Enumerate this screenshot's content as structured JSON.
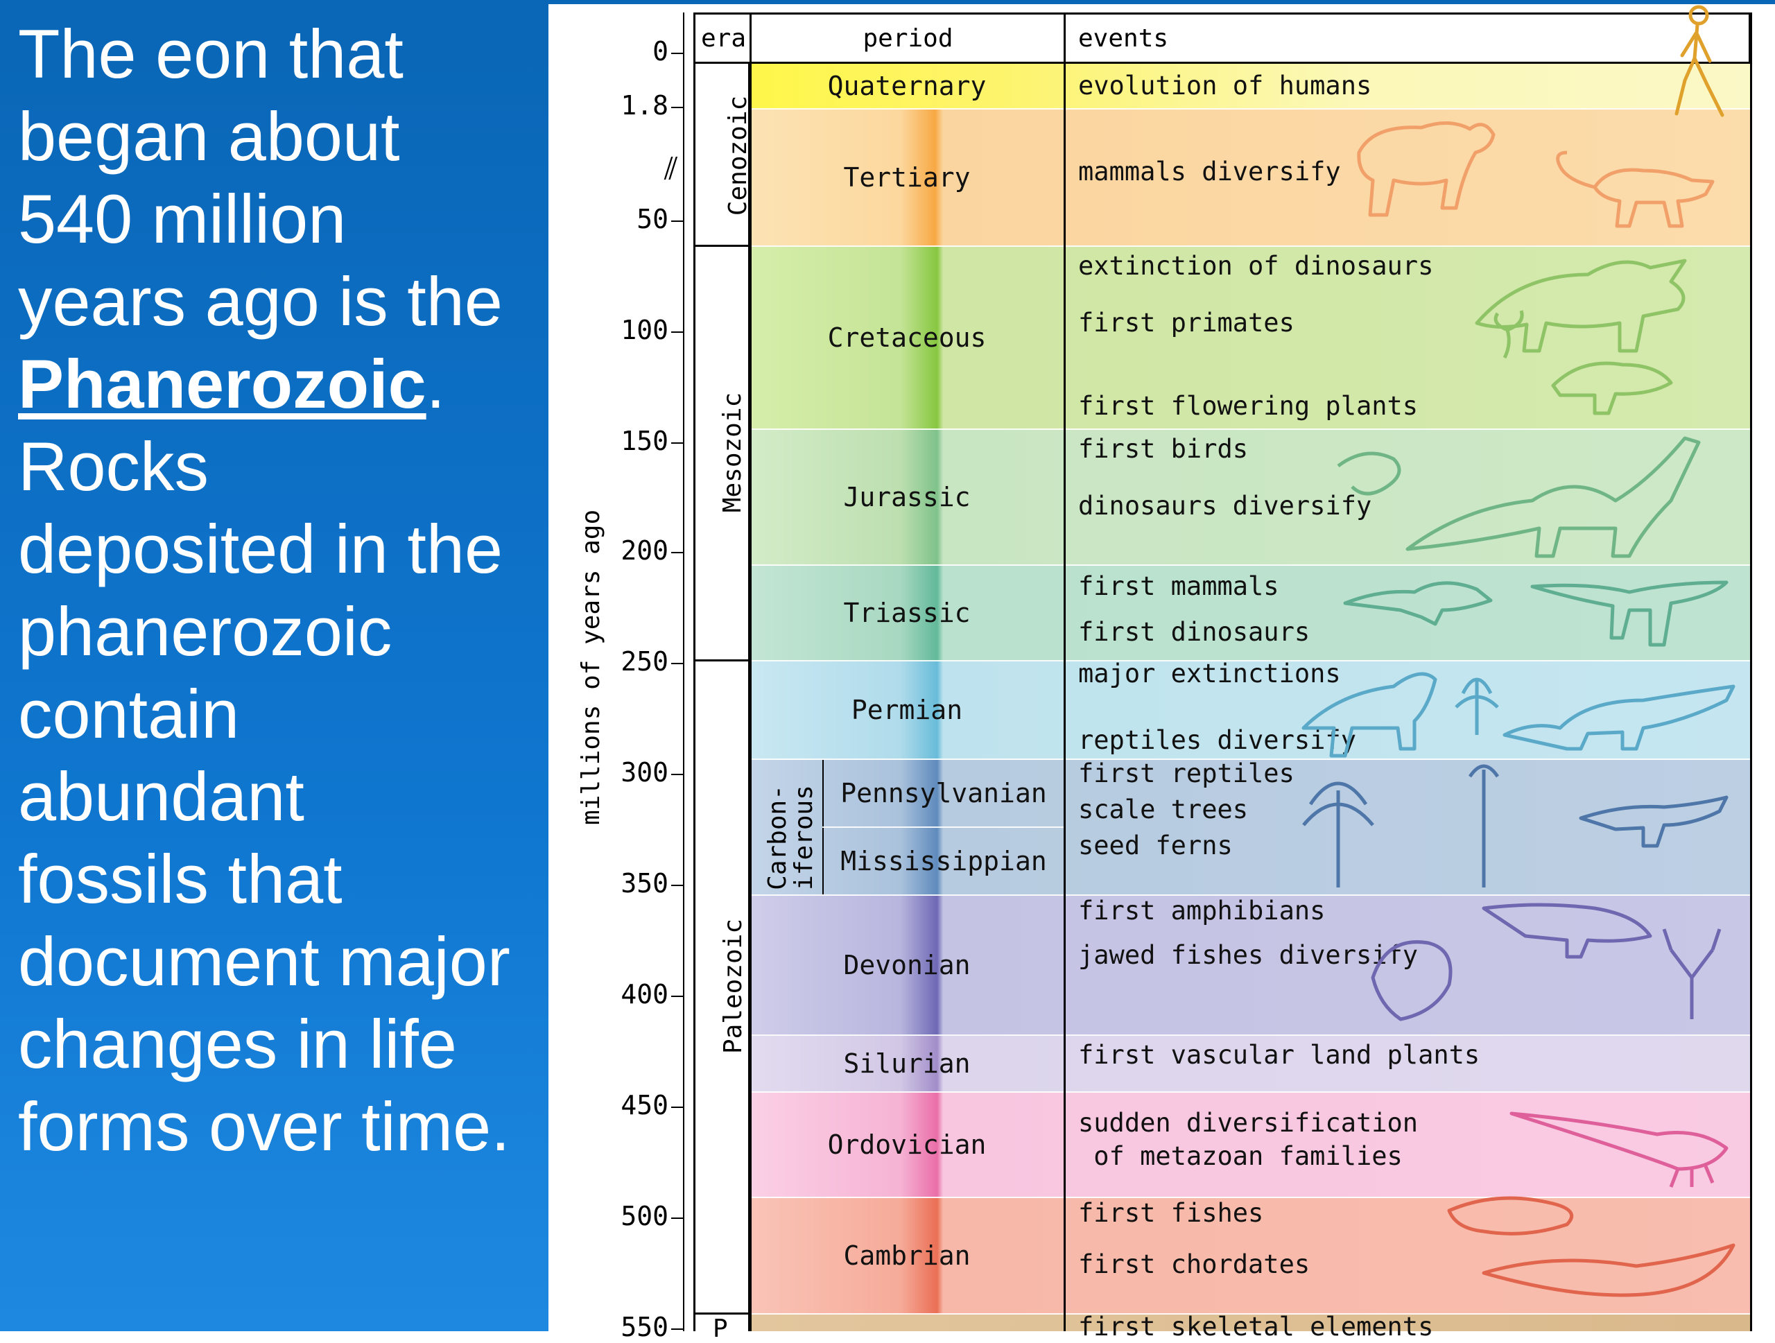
{
  "left_panel": {
    "line1": "The eon that",
    "line2": "began about",
    "line3": "540 million",
    "line4": "years ago is the",
    "keyword": "Phanerozoic",
    "keyword_suffix": ".",
    "line6": "Rocks",
    "line7": "deposited in the",
    "line8": "phanerozoic",
    "line9": "contain",
    "line10": "abundant",
    "line11": "fossils that",
    "line12": "document major",
    "line13": "changes in life",
    "line14": "forms over time."
  },
  "headers": {
    "era": "era",
    "period": "period",
    "events": "events"
  },
  "axis": {
    "title": "millions of years ago",
    "ticks": [
      "0",
      "1.8",
      "50",
      "100",
      "150",
      "200",
      "250",
      "300",
      "350",
      "400",
      "450",
      "500",
      "550"
    ]
  },
  "eras": {
    "cenozoic": "Cenozoic",
    "mesozoic": "Mesozoic",
    "paleozoic": "Paleozoic",
    "next_partial": "P",
    "carboniferous": "Carbon-\niferous"
  },
  "periods": {
    "quaternary": "Quaternary",
    "tertiary": "Tertiary",
    "cretaceous": "Cretaceous",
    "jurassic": "Jurassic",
    "triassic": "Triassic",
    "permian": "Permian",
    "pennsylvanian": "Pennsylvanian",
    "mississippian": "Mississippian",
    "devonian": "Devonian",
    "silurian": "Silurian",
    "ordovician": "Ordovician",
    "cambrian": "Cambrian"
  },
  "events": {
    "quaternary": [
      "evolution of humans"
    ],
    "tertiary": [
      "mammals diversify"
    ],
    "cretaceous": [
      "extinction of dinosaurs",
      "first primates",
      "first flowering plants"
    ],
    "jurassic": [
      "first birds",
      "dinosaurs diversify"
    ],
    "triassic": [
      "first mammals",
      "first dinosaurs"
    ],
    "permian": [
      "major extinctions",
      "reptiles diversify"
    ],
    "carboniferous": [
      "first reptiles",
      "scale trees",
      "seed ferns"
    ],
    "devonian": [
      "first amphibians",
      "jawed fishes diversify"
    ],
    "silurian": [
      "first vascular land plants"
    ],
    "ordovician": [
      "sudden diversification",
      " of metazoan families"
    ],
    "cambrian": [
      "first fishes",
      "first chordates"
    ],
    "partial": [
      "first skeletal elements"
    ]
  },
  "colors": {
    "left_bg": "#0a66b6",
    "quaternary": "#fbf59a",
    "tertiary": "#fbd9a6",
    "cretaceous": "#cfe6a4",
    "jurassic": "#c9e6c3",
    "triassic": "#b9e1cd",
    "permian": "#bfe3ee",
    "carboniferous": "#b7cbe0",
    "devonian": "#c4c3e3",
    "silurian": "#dcd5ec",
    "ordovician": "#f8c6df",
    "cambrian": "#f7b8a9",
    "precambrian": "#d9b98c"
  }
}
